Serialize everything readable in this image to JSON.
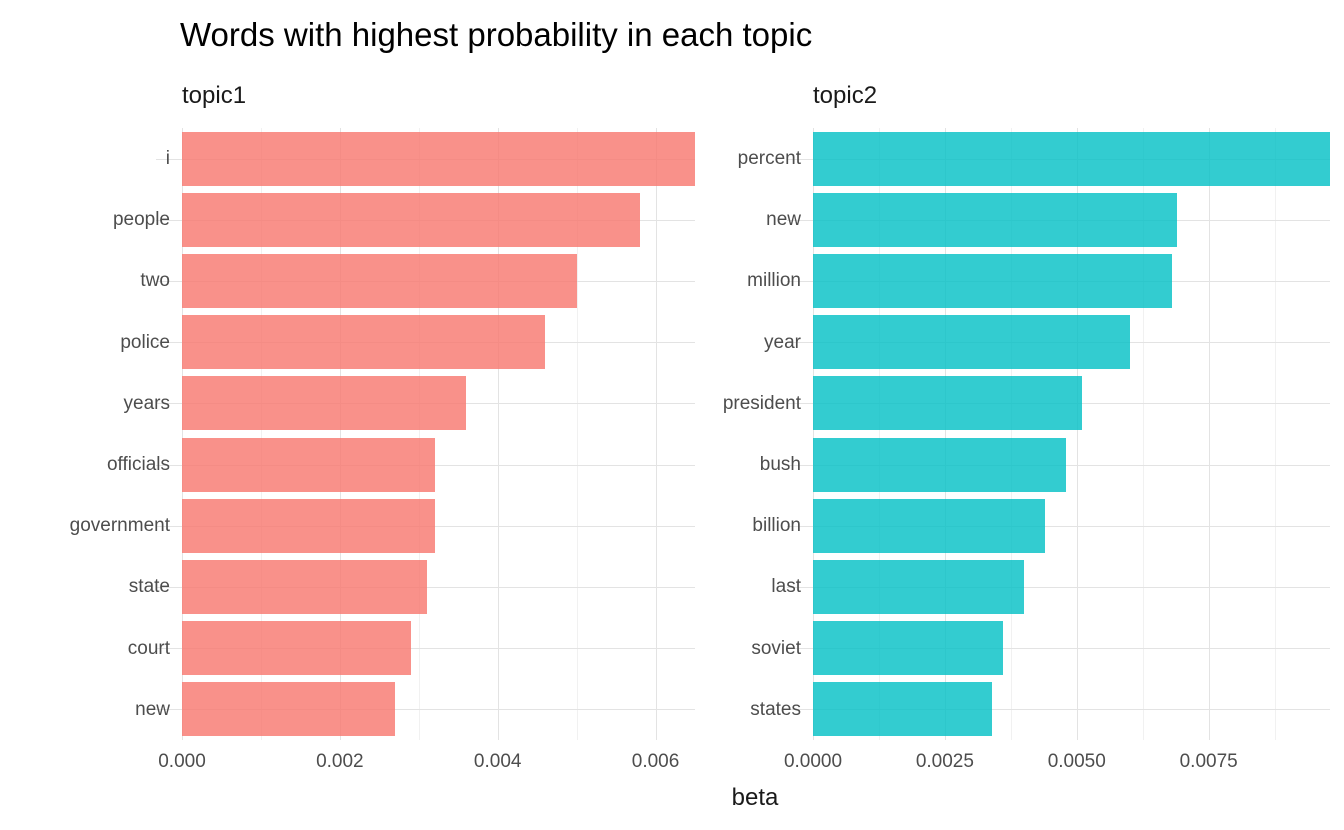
{
  "title": "Words with highest probability in each topic",
  "xlabel": "beta",
  "colors": {
    "background": "#FFFFFF",
    "topic1_bar": "#F8766D",
    "topic2_bar": "#00BFC4",
    "bar_alpha": 0.8,
    "axis_text": "#4D4D4D",
    "title_text": "#000000",
    "grid_major": "#E3E3E3",
    "grid_minor": "#F1F1F1"
  },
  "chart_data": {
    "type": "bar",
    "orientation": "horizontal",
    "title": "Words with highest probability in each topic",
    "xlabel": "beta",
    "ylabel": "",
    "grid": true,
    "legend": false,
    "facets": [
      {
        "label": "topic1",
        "bar_color": "rgba(248,118,109,0.8)",
        "bar_color_hex": "#F8766D",
        "xlim": [
          0,
          0.0065
        ],
        "ticks": [
          {
            "label": "0.000",
            "value": 0.0
          },
          {
            "label": "0.002",
            "value": 0.002
          },
          {
            "label": "0.004",
            "value": 0.004
          },
          {
            "label": "0.006",
            "value": 0.006
          }
        ],
        "minor_ticks": [
          0.001,
          0.003,
          0.005
        ],
        "words": [
          {
            "word": "i",
            "beta": 0.0065
          },
          {
            "word": "people",
            "beta": 0.0058
          },
          {
            "word": "two",
            "beta": 0.005
          },
          {
            "word": "police",
            "beta": 0.0046
          },
          {
            "word": "years",
            "beta": 0.0036
          },
          {
            "word": "officials",
            "beta": 0.0032
          },
          {
            "word": "government",
            "beta": 0.0032
          },
          {
            "word": "state",
            "beta": 0.0031
          },
          {
            "word": "court",
            "beta": 0.0029
          },
          {
            "word": "new",
            "beta": 0.0027
          }
        ]
      },
      {
        "label": "topic2",
        "bar_color": "rgba(0,191,196,0.8)",
        "bar_color_hex": "#00BFC4",
        "xlim": [
          0,
          0.0098
        ],
        "ticks": [
          {
            "label": "0.0000",
            "value": 0.0
          },
          {
            "label": "0.0025",
            "value": 0.0025
          },
          {
            "label": "0.0050",
            "value": 0.005
          },
          {
            "label": "0.0075",
            "value": 0.0075
          }
        ],
        "minor_ticks": [
          0.00125,
          0.00375,
          0.00625,
          0.00875
        ],
        "words": [
          {
            "word": "percent",
            "beta": 0.0098
          },
          {
            "word": "new",
            "beta": 0.0069
          },
          {
            "word": "million",
            "beta": 0.0068
          },
          {
            "word": "year",
            "beta": 0.006
          },
          {
            "word": "president",
            "beta": 0.0051
          },
          {
            "word": "bush",
            "beta": 0.0048
          },
          {
            "word": "billion",
            "beta": 0.0044
          },
          {
            "word": "last",
            "beta": 0.004
          },
          {
            "word": "soviet",
            "beta": 0.0036
          },
          {
            "word": "states",
            "beta": 0.0034
          }
        ]
      }
    ]
  }
}
